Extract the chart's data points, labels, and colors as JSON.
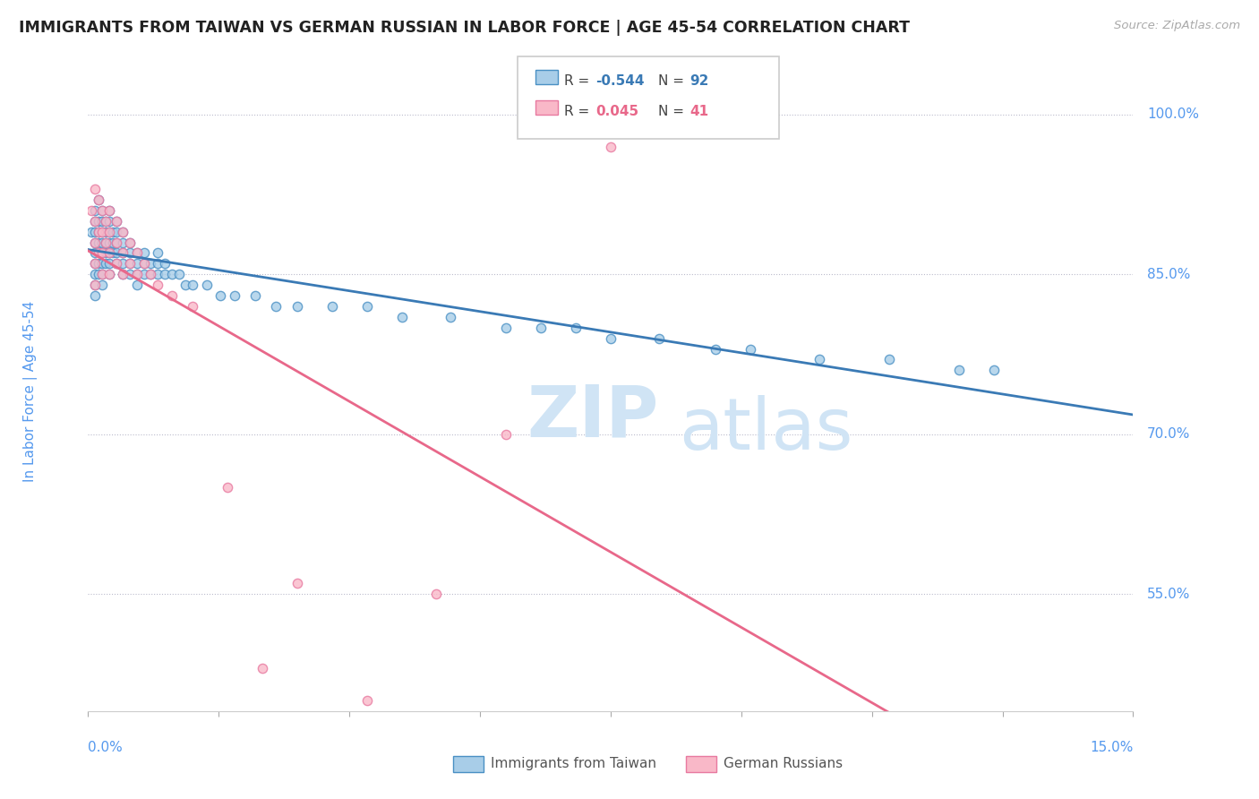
{
  "title": "IMMIGRANTS FROM TAIWAN VS GERMAN RUSSIAN IN LABOR FORCE | AGE 45-54 CORRELATION CHART",
  "source_text": "Source: ZipAtlas.com",
  "ylabel": "In Labor Force | Age 45-54",
  "y_ticks": [
    0.55,
    0.7,
    0.85,
    1.0
  ],
  "y_tick_labels": [
    "55.0%",
    "70.0%",
    "85.0%",
    "100.0%"
  ],
  "x_min": 0.0,
  "x_max": 0.15,
  "y_min": 0.44,
  "y_max": 1.04,
  "legend_blue_label": "Immigrants from Taiwan",
  "legend_pink_label": "German Russians",
  "blue_r_val": "-0.544",
  "blue_n_val": "92",
  "pink_r_val": "0.045",
  "pink_n_val": "41",
  "blue_fill": "#a8cde8",
  "pink_fill": "#f9b8c8",
  "blue_edge": "#4a90c4",
  "pink_edge": "#e87aa0",
  "blue_line_color": "#3a7ab5",
  "pink_line_color": "#e8688a",
  "axis_label_color": "#5599ee",
  "watermark_color": "#d0e4f5",
  "background_color": "#ffffff",
  "taiwan_x": [
    0.0005,
    0.001,
    0.001,
    0.001,
    0.001,
    0.001,
    0.001,
    0.001,
    0.001,
    0.001,
    0.0015,
    0.0015,
    0.0015,
    0.0015,
    0.0015,
    0.0015,
    0.002,
    0.002,
    0.002,
    0.002,
    0.002,
    0.002,
    0.002,
    0.002,
    0.0025,
    0.0025,
    0.0025,
    0.0025,
    0.0025,
    0.003,
    0.003,
    0.003,
    0.003,
    0.003,
    0.003,
    0.003,
    0.0035,
    0.0035,
    0.0035,
    0.004,
    0.004,
    0.004,
    0.004,
    0.004,
    0.005,
    0.005,
    0.005,
    0.005,
    0.005,
    0.006,
    0.006,
    0.006,
    0.006,
    0.007,
    0.007,
    0.007,
    0.007,
    0.008,
    0.008,
    0.008,
    0.009,
    0.009,
    0.01,
    0.01,
    0.01,
    0.011,
    0.011,
    0.012,
    0.013,
    0.014,
    0.015,
    0.017,
    0.019,
    0.021,
    0.024,
    0.027,
    0.03,
    0.035,
    0.04,
    0.045,
    0.052,
    0.06,
    0.065,
    0.07,
    0.075,
    0.082,
    0.09,
    0.095,
    0.105,
    0.115,
    0.125,
    0.13
  ],
  "taiwan_y": [
    0.89,
    0.91,
    0.9,
    0.89,
    0.88,
    0.87,
    0.86,
    0.85,
    0.84,
    0.83,
    0.92,
    0.9,
    0.89,
    0.88,
    0.86,
    0.85,
    0.91,
    0.9,
    0.89,
    0.88,
    0.87,
    0.86,
    0.85,
    0.84,
    0.9,
    0.89,
    0.88,
    0.87,
    0.86,
    0.91,
    0.9,
    0.89,
    0.88,
    0.87,
    0.86,
    0.85,
    0.89,
    0.88,
    0.87,
    0.9,
    0.89,
    0.88,
    0.87,
    0.86,
    0.89,
    0.88,
    0.87,
    0.86,
    0.85,
    0.88,
    0.87,
    0.86,
    0.85,
    0.87,
    0.86,
    0.85,
    0.84,
    0.87,
    0.86,
    0.85,
    0.86,
    0.85,
    0.87,
    0.86,
    0.85,
    0.86,
    0.85,
    0.85,
    0.85,
    0.84,
    0.84,
    0.84,
    0.83,
    0.83,
    0.83,
    0.82,
    0.82,
    0.82,
    0.82,
    0.81,
    0.81,
    0.8,
    0.8,
    0.8,
    0.79,
    0.79,
    0.78,
    0.78,
    0.77,
    0.77,
    0.76,
    0.76
  ],
  "german_x": [
    0.0005,
    0.001,
    0.001,
    0.001,
    0.001,
    0.001,
    0.0015,
    0.0015,
    0.0015,
    0.002,
    0.002,
    0.002,
    0.002,
    0.0025,
    0.0025,
    0.003,
    0.003,
    0.003,
    0.003,
    0.004,
    0.004,
    0.004,
    0.005,
    0.005,
    0.005,
    0.006,
    0.006,
    0.007,
    0.007,
    0.008,
    0.009,
    0.01,
    0.012,
    0.015,
    0.02,
    0.025,
    0.03,
    0.04,
    0.05,
    0.06,
    0.075
  ],
  "german_y": [
    0.91,
    0.93,
    0.9,
    0.88,
    0.86,
    0.84,
    0.92,
    0.89,
    0.87,
    0.91,
    0.89,
    0.87,
    0.85,
    0.9,
    0.88,
    0.91,
    0.89,
    0.87,
    0.85,
    0.9,
    0.88,
    0.86,
    0.89,
    0.87,
    0.85,
    0.88,
    0.86,
    0.87,
    0.85,
    0.86,
    0.85,
    0.84,
    0.83,
    0.82,
    0.65,
    0.48,
    0.56,
    0.45,
    0.55,
    0.7,
    0.97
  ]
}
